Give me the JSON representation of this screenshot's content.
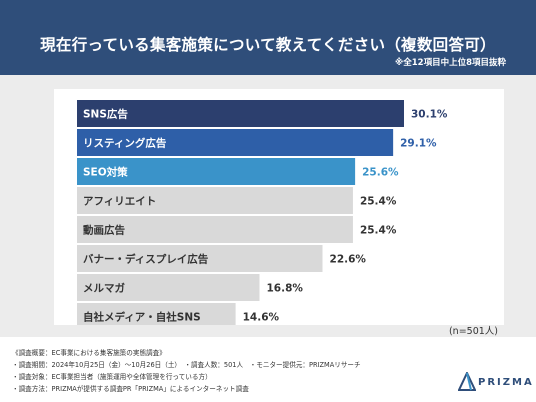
{
  "header": {
    "title": "現在行っている集客施策について教えてください（複数回答可）",
    "note": "※全12項目中上位8項目抜粋"
  },
  "chart_data": {
    "type": "bar",
    "orientation": "horizontal",
    "categories": [
      "SNS広告",
      "リスティング広告",
      "SEO対策",
      "アフィリエイト",
      "動画広告",
      "バナー・ディスプレイ広告",
      "メルマガ",
      "自社メディア・自社SNS"
    ],
    "values": [
      30.1,
      29.1,
      25.6,
      25.4,
      25.4,
      22.6,
      16.8,
      14.6
    ],
    "value_labels": [
      "30.1%",
      "29.1%",
      "25.6%",
      "25.4%",
      "25.4%",
      "22.6%",
      "16.8%",
      "14.6%"
    ],
    "bar_colors": [
      "#2c3f6e",
      "#2e5fa8",
      "#3a93c9",
      "#d9d9d9",
      "#d9d9d9",
      "#d9d9d9",
      "#d9d9d9",
      "#d9d9d9"
    ],
    "label_colors": [
      "#ffffff",
      "#ffffff",
      "#ffffff",
      "#333333",
      "#333333",
      "#333333",
      "#333333",
      "#333333"
    ],
    "value_colors": [
      "#2c3f6e",
      "#2e5fa8",
      "#3a93c9",
      "#333333",
      "#333333",
      "#333333",
      "#333333",
      "#333333"
    ],
    "xlim": [
      0,
      30.1
    ],
    "n_label": "(n=501人)"
  },
  "footer": {
    "lines": [
      "《調査概要：EC事業における集客施策の実態調査》",
      "・調査期間：2024年10月25日（金）〜10月26日（土）　・調査人数：501人　・モニター提供元：PRIZMAリサーチ",
      "・調査対象：EC事業担当者（施策運用や全体管理を行っている方）",
      "・調査方法：PRIZMAが提供する調査PR「PRIZMA」によるインターネット調査"
    ]
  },
  "logo": {
    "text": "PRIZMA",
    "color": "#2f4e7a"
  }
}
